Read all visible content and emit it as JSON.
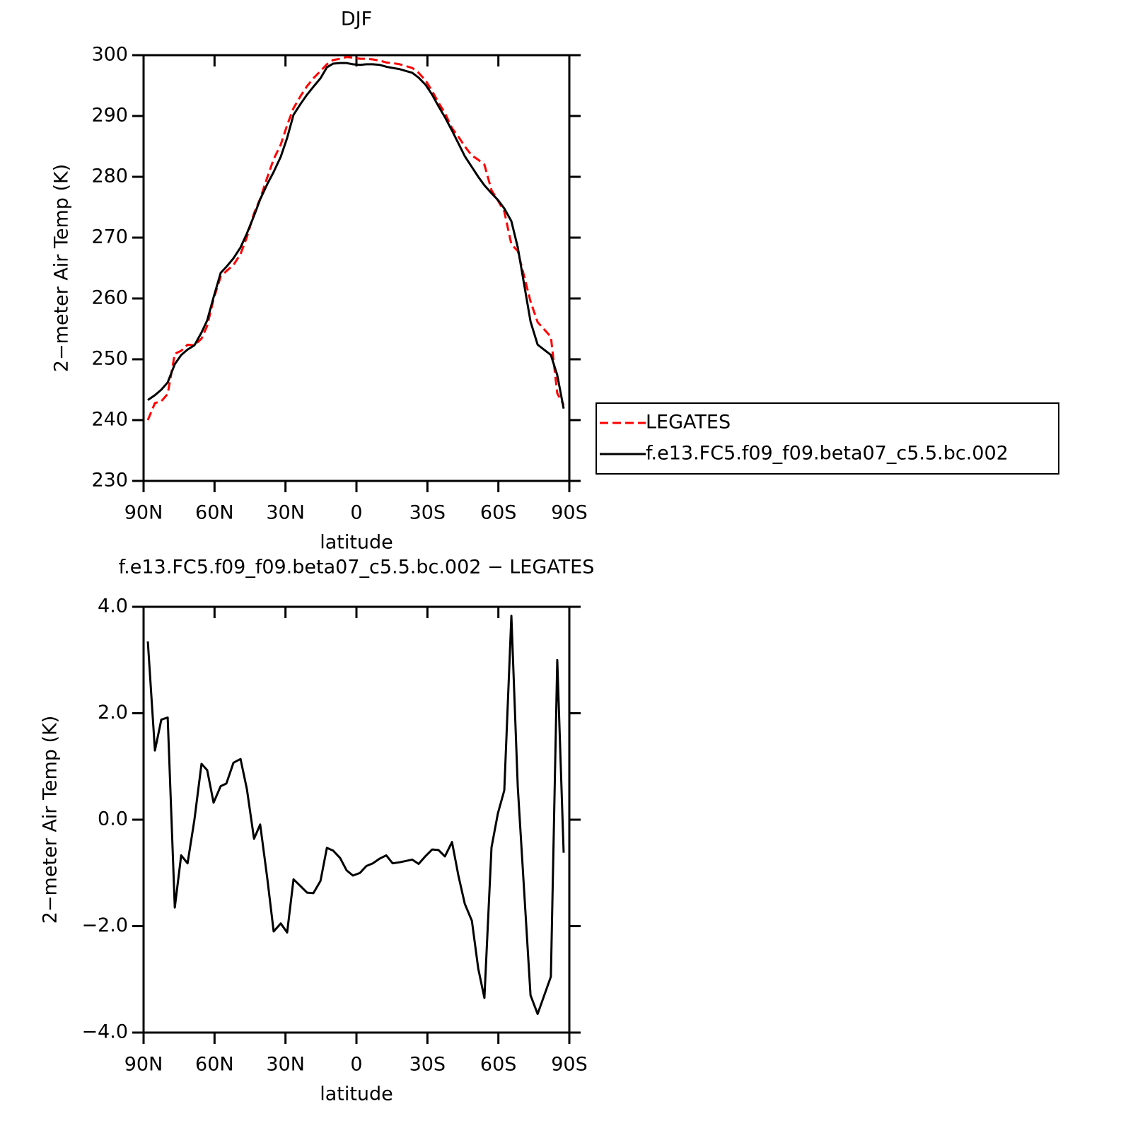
{
  "chart_data": [
    {
      "type": "line",
      "title": "DJF",
      "x_label": "latitude",
      "y_label": "2−meter Air Temp (K)",
      "x": [
        88.2,
        85.2,
        82.5,
        79.8,
        76.8,
        74.1,
        71.4,
        68.5,
        65.5,
        63.1,
        60.4,
        57.4,
        55.0,
        52.0,
        49.0,
        46.3,
        43.3,
        40.7,
        37.7,
        35.0,
        32.0,
        29.3,
        26.6,
        23.6,
        20.9,
        18.2,
        15.2,
        12.5,
        9.9,
        6.9,
        4.2,
        1.5,
        -1.5,
        -4.2,
        -6.9,
        -9.9,
        -12.6,
        -15.3,
        -18.3,
        -23.6,
        -26.3,
        -29.3,
        -32.0,
        -34.7,
        -37.4,
        -40.4,
        -43.1,
        -45.8,
        -48.8,
        -51.5,
        -54.1,
        -57.1,
        -59.8,
        -62.5,
        -65.5,
        -68.2,
        -73.6,
        -76.6,
        -82.2,
        -84.9,
        -87.6
      ],
      "series": [
        {
          "name": "LEGATES",
          "color": "#ff0000",
          "dash": "dashed",
          "values": [
            240.0,
            242.8,
            243.1,
            244.3,
            250.9,
            251.4,
            252.4,
            252.3,
            253.4,
            255.5,
            259.9,
            263.6,
            264.5,
            265.5,
            267.3,
            270.1,
            274.0,
            276.4,
            279.9,
            282.9,
            285.3,
            288.5,
            291.3,
            293.3,
            294.9,
            296.2,
            297.4,
            298.5,
            299.2,
            299.4,
            299.7,
            299.6,
            299.4,
            299.4,
            299.3,
            299.1,
            298.8,
            298.7,
            298.5,
            297.9,
            297.1,
            295.8,
            294.1,
            292.2,
            290.5,
            288.0,
            286.6,
            285.0,
            283.5,
            282.8,
            282.0,
            277.8,
            276.1,
            274.3,
            268.9,
            267.8,
            259.5,
            256.1,
            253.7,
            244.4,
            242.5
          ]
        },
        {
          "name": "f.e13.FC5.f09_f09.beta07_c5.5.bc.002",
          "color": "#000000",
          "dash": "solid",
          "values": [
            243.3,
            244.1,
            245.0,
            246.2,
            249.2,
            250.7,
            251.6,
            252.3,
            254.4,
            256.4,
            260.2,
            264.2,
            265.2,
            266.6,
            268.4,
            270.7,
            273.6,
            276.3,
            278.8,
            280.8,
            283.3,
            286.4,
            290.2,
            292.0,
            293.5,
            294.8,
            296.2,
            298.0,
            298.6,
            298.7,
            298.7,
            298.5,
            298.4,
            298.5,
            298.5,
            298.4,
            298.1,
            297.9,
            297.7,
            297.1,
            296.3,
            295.1,
            293.5,
            291.6,
            289.8,
            287.6,
            285.5,
            283.4,
            281.6,
            280.0,
            278.6,
            277.3,
            276.2,
            274.8,
            272.7,
            268.4,
            256.2,
            252.4,
            250.7,
            247.4,
            241.9
          ]
        }
      ],
      "xlim": [
        90,
        -90
      ],
      "xticks": [
        {
          "value": 90,
          "label": "90N"
        },
        {
          "value": 60,
          "label": "60N"
        },
        {
          "value": 30,
          "label": "30N"
        },
        0,
        {
          "value": -30,
          "label": "30S"
        },
        {
          "value": -60,
          "label": "60S"
        },
        {
          "value": -90,
          "label": "90S"
        }
      ],
      "ylim": [
        230,
        300
      ],
      "yticks": [
        230,
        240,
        250,
        260,
        270,
        280,
        290,
        300
      ],
      "legend": "right"
    },
    {
      "type": "line",
      "title": "f.e13.FC5.f09_f09.beta07_c5.5.bc.002 − LEGATES",
      "x_label": "latitude",
      "y_label": "2−meter Air Temp (K)",
      "x": [
        88.2,
        85.2,
        82.5,
        79.8,
        76.8,
        74.1,
        71.4,
        68.5,
        65.5,
        63.1,
        60.4,
        57.4,
        55.0,
        52.0,
        49.0,
        46.3,
        43.3,
        40.7,
        37.7,
        35.0,
        32.0,
        29.3,
        26.6,
        23.6,
        20.9,
        18.2,
        15.2,
        12.5,
        9.9,
        6.9,
        4.2,
        1.5,
        -1.5,
        -4.2,
        -6.9,
        -9.9,
        -12.6,
        -15.3,
        -18.3,
        -23.6,
        -26.3,
        -29.3,
        -32.0,
        -34.7,
        -37.4,
        -40.4,
        -43.1,
        -45.8,
        -48.8,
        -51.5,
        -54.1,
        -57.1,
        -59.8,
        -62.5,
        -65.5,
        -68.2,
        -73.6,
        -76.6,
        -82.2,
        -84.9,
        -87.6
      ],
      "series": [
        {
          "color": "#000000",
          "dash": "solid",
          "values": [
            3.35,
            1.3,
            1.88,
            1.92,
            -1.65,
            -0.67,
            -0.82,
            0.0,
            1.05,
            0.93,
            0.32,
            0.63,
            0.68,
            1.07,
            1.14,
            0.57,
            -0.36,
            -0.09,
            -1.1,
            -2.1,
            -1.95,
            -2.12,
            -1.12,
            -1.25,
            -1.37,
            -1.38,
            -1.15,
            -0.53,
            -0.58,
            -0.72,
            -0.95,
            -1.05,
            -1.0,
            -0.87,
            -0.82,
            -0.73,
            -0.67,
            -0.82,
            -0.8,
            -0.75,
            -0.83,
            -0.68,
            -0.56,
            -0.57,
            -0.69,
            -0.42,
            -1.05,
            -1.58,
            -1.9,
            -2.8,
            -3.35,
            -0.52,
            0.12,
            0.55,
            3.83,
            0.62,
            -3.3,
            -3.65,
            -2.95,
            3.0,
            -0.62
          ]
        }
      ],
      "xlim": [
        90,
        -90
      ],
      "xticks": [
        {
          "value": 90,
          "label": "90N"
        },
        {
          "value": 60,
          "label": "60N"
        },
        {
          "value": 30,
          "label": "30N"
        },
        0,
        {
          "value": -30,
          "label": "30S"
        },
        {
          "value": -60,
          "label": "60S"
        },
        {
          "value": -90,
          "label": "90S"
        }
      ],
      "ylim": [
        -4,
        4
      ],
      "yticks": [
        {
          "value": -4,
          "label": "−4.0"
        },
        {
          "value": -2,
          "label": "−2.0"
        },
        {
          "value": 0,
          "label": "0.0"
        },
        {
          "value": 2,
          "label": "2.0"
        },
        {
          "value": 4,
          "label": "4.0"
        }
      ]
    }
  ]
}
